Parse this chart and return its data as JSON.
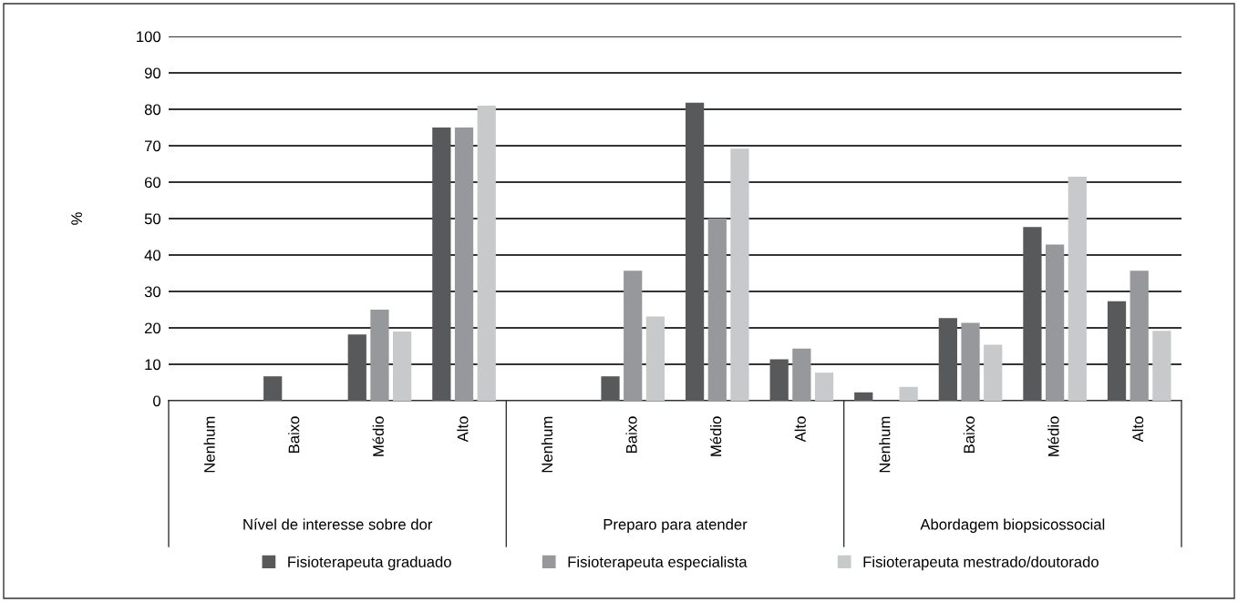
{
  "chart_data": {
    "type": "bar",
    "ylabel": "%",
    "categories": [
      "Nenhum",
      "Baixo",
      "Médio",
      "Alto",
      "Nenhum",
      "Baixo",
      "Médio",
      "Alto",
      "Nenhum",
      "Baixo",
      "Médio",
      "Alto"
    ],
    "annotations": [
      "Nível de interesse sobre dor",
      "Preparo para atender",
      "Abordagem biopsicossocial"
    ],
    "series": [
      {
        "name": "Fisioterapeuta graduado",
        "color": "#58595b",
        "values": [
          0,
          6.7,
          18.2,
          75,
          0,
          6.7,
          81.8,
          11.4,
          2.3,
          22.7,
          47.7,
          27.3
        ]
      },
      {
        "name": "Fisioterapeuta especialista",
        "color": "#97989b",
        "values": [
          0,
          0,
          25,
          75,
          0,
          35.7,
          50,
          14.3,
          0,
          21.4,
          42.9,
          35.7
        ]
      },
      {
        "name": "Fisioterapeuta mestrado/doutorado",
        "color": "#c8c9cb",
        "values": [
          0,
          0,
          19,
          81,
          0,
          23.1,
          69.2,
          7.7,
          3.8,
          15.4,
          61.5,
          19.2
        ]
      }
    ],
    "ylim": [
      0,
      100
    ],
    "yticks": [
      0,
      10,
      20,
      30,
      40,
      50,
      60,
      70,
      80,
      90,
      100
    ],
    "grid": "y",
    "legend": "bottom"
  }
}
